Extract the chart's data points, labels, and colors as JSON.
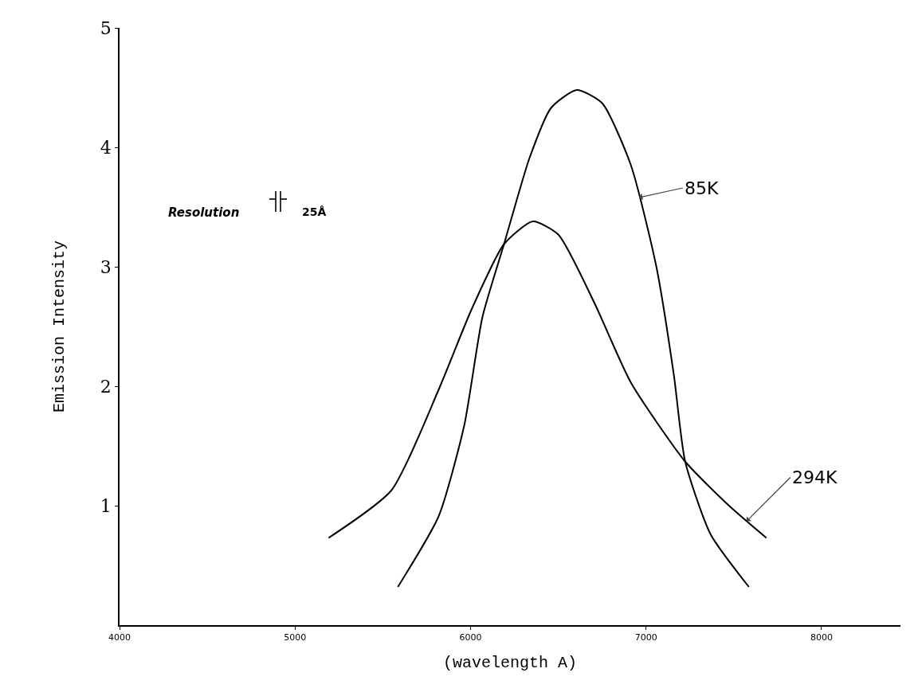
{
  "chart_data": {
    "type": "line",
    "xlabel": "(wavelength A)",
    "ylabel": "Emission Intensity",
    "xlim": [
      4000,
      8450
    ],
    "ylim": [
      0,
      5
    ],
    "xticks": [
      4000,
      5000,
      6000,
      7000,
      8000
    ],
    "yticks": [
      1,
      2,
      3,
      4,
      5
    ],
    "marker": "none",
    "line_style": "solid",
    "series": [
      {
        "color": "#000000",
        "x": [
          5191,
          5550,
          5818,
          6005,
          6191,
          6355,
          6500,
          6705,
          6914,
          7223,
          7473,
          7686
        ],
        "values": [
          0.73,
          1.13,
          1.97,
          2.64,
          3.19,
          3.38,
          3.27,
          2.7,
          2.03,
          1.37,
          1.0,
          0.73
        ]
      },
      {
        "color": "#000000",
        "x": [
          5586,
          5818,
          5964,
          6068,
          6191,
          6336,
          6459,
          6605,
          6750,
          6914,
          7059,
          7159,
          7223,
          7368,
          7586
        ],
        "values": [
          0.32,
          0.91,
          1.67,
          2.58,
          3.19,
          3.91,
          4.33,
          4.48,
          4.37,
          3.85,
          3.0,
          2.09,
          1.37,
          0.76,
          0.32
        ]
      }
    ],
    "annotations": [
      {
        "text": "85K",
        "x": 6960,
        "y": 3.58
      },
      {
        "text": "294K",
        "x": 7573,
        "y": 0.87
      },
      "Resolution",
      "25Å"
    ]
  }
}
